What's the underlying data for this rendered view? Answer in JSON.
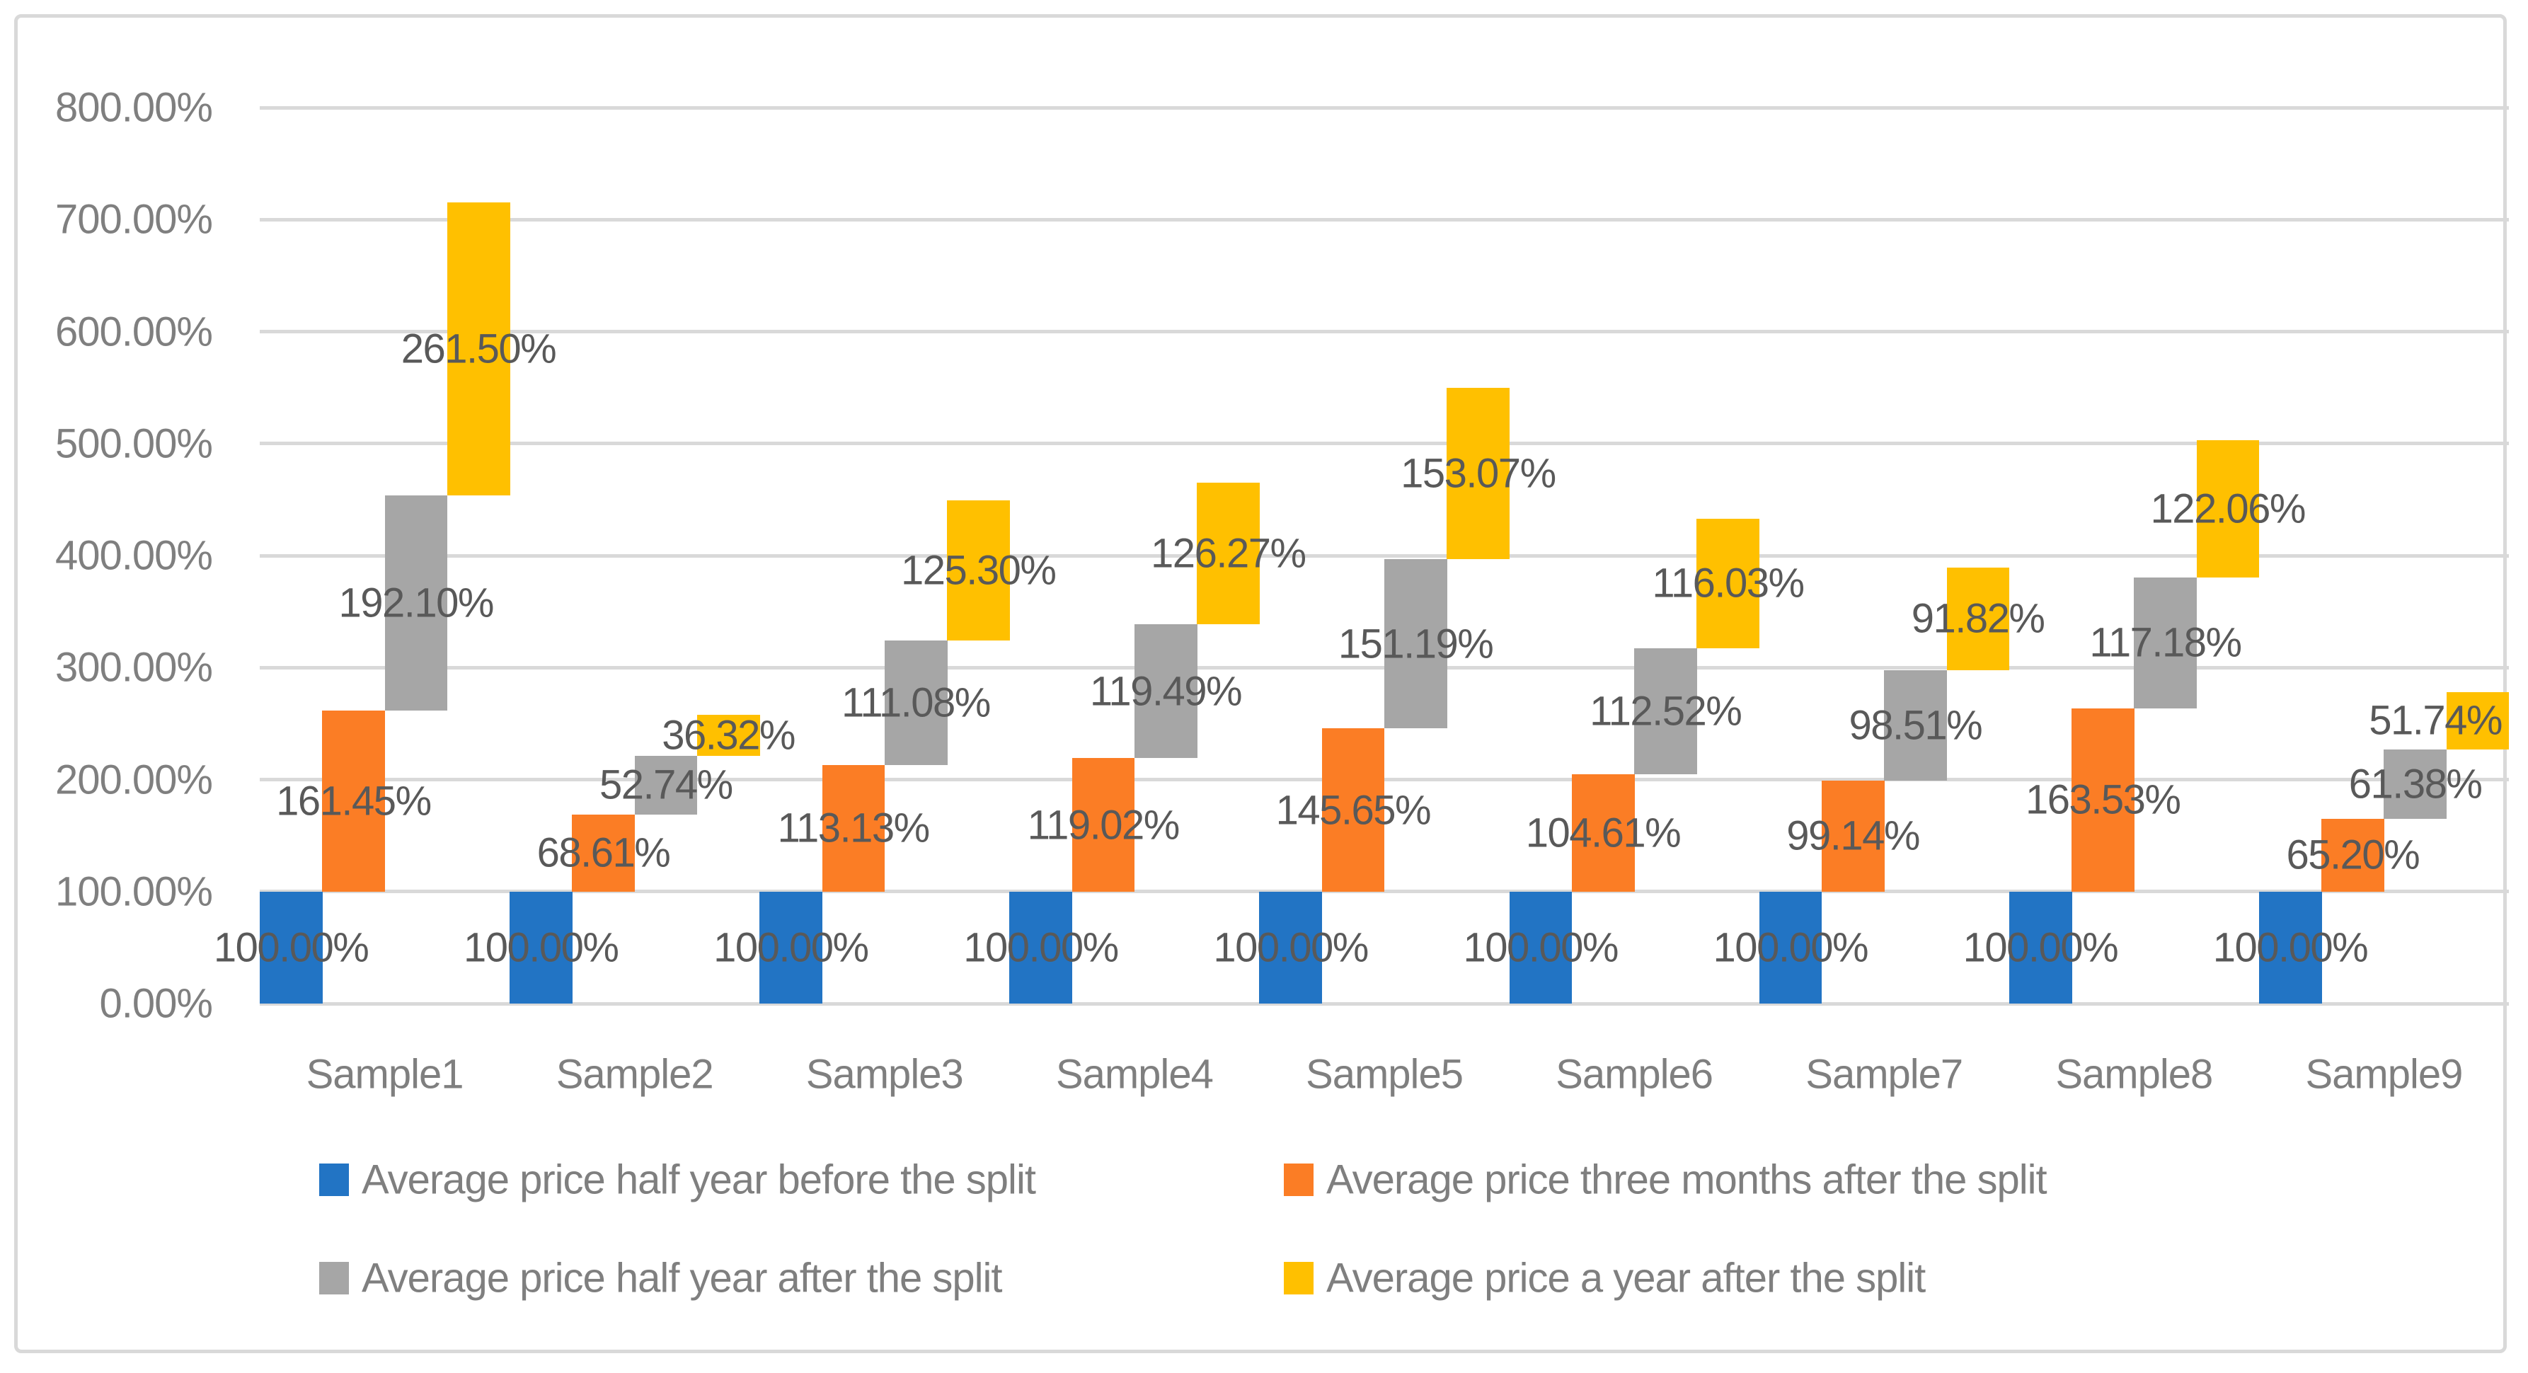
{
  "chart_data": {
    "type": "bar",
    "subtype": "staircase-stacked-columns",
    "title": "",
    "xlabel": "",
    "ylabel": "",
    "categories": [
      "Sample1",
      "Sample2",
      "Sample3",
      "Sample4",
      "Sample5",
      "Sample6",
      "Sample7",
      "Sample8",
      "Sample9"
    ],
    "series": [
      {
        "name": "Average price half year before the split",
        "color": "#2274C4",
        "values": [
          100.0,
          100.0,
          100.0,
          100.0,
          100.0,
          100.0,
          100.0,
          100.0,
          100.0
        ],
        "labels": [
          "100.00%",
          "100.00%",
          "100.00%",
          "100.00%",
          "100.00%",
          "100.00%",
          "100.00%",
          "100.00%",
          "100.00%"
        ]
      },
      {
        "name": "Average price three months after the split",
        "color": "#FB7D25",
        "values": [
          161.45,
          68.61,
          113.13,
          119.02,
          145.65,
          104.61,
          99.14,
          163.53,
          65.2
        ],
        "labels": [
          "161.45%",
          "68.61%",
          "113.13%",
          "119.02%",
          "145.65%",
          "104.61%",
          "99.14%",
          "163.53%",
          "65.20%"
        ]
      },
      {
        "name": "Average price half year after the split",
        "color": "#A6A6A6",
        "values": [
          192.1,
          52.74,
          111.08,
          119.49,
          151.19,
          112.52,
          98.51,
          117.18,
          61.38
        ],
        "labels": [
          "192.10%",
          "52.74%",
          "111.08%",
          "119.49%",
          "151.19%",
          "112.52%",
          "98.51%",
          "117.18%",
          "61.38%"
        ]
      },
      {
        "name": "Average price a year after the split",
        "color": "#FFC000",
        "values": [
          261.5,
          36.32,
          125.3,
          126.27,
          153.07,
          116.03,
          91.82,
          122.06,
          51.74
        ],
        "labels": [
          "261.50%",
          "36.32%",
          "125.30%",
          "126.27%",
          "153.07%",
          "116.03%",
          "91.82%",
          "122.06%",
          "51.74%"
        ]
      }
    ],
    "stacking_note": "Each series segment is drawn in its own sub-column, spanning from the cumulative sum of previous series to the cumulative sum including itself (first series starts at 0).",
    "y_axis": {
      "min": 0,
      "max": 800,
      "step": 100,
      "ticks": [
        "0.00%",
        "100.00%",
        "200.00%",
        "300.00%",
        "400.00%",
        "500.00%",
        "600.00%",
        "700.00%",
        "800.00%"
      ],
      "grid": true
    },
    "legend_position": "bottom, two rows, two columns"
  },
  "legend": {
    "items": [
      {
        "label": "Average price half year before the split",
        "color": "#2274C4"
      },
      {
        "label": "Average price three months after the split",
        "color": "#FB7D25"
      },
      {
        "label": "Average price half year after the split",
        "color": "#A6A6A6"
      },
      {
        "label": "Average price a year after the split",
        "color": "#FFC000"
      }
    ]
  },
  "colors": {
    "gridline": "#D9D9D9",
    "chart_border": "#D9D9D9",
    "data_label_text": "#595959",
    "axis_text": "#7F7F7F",
    "background": "#FFFFFF"
  }
}
